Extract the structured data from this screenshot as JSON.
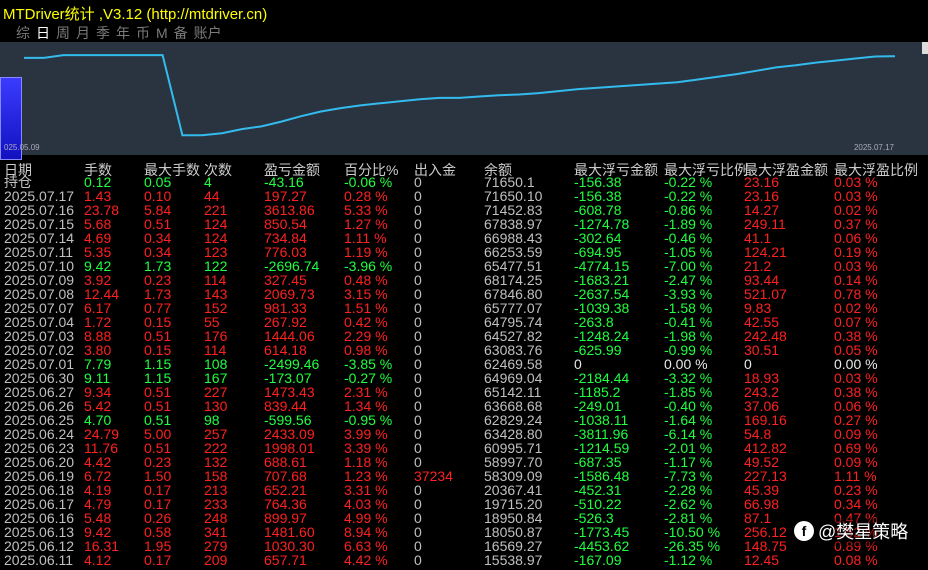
{
  "window": {
    "title": "MTDriver统计 ,V3.12 (http://mtdriver.cn)"
  },
  "tabs": [
    {
      "label": "综",
      "active": false
    },
    {
      "label": "日",
      "active": true
    },
    {
      "label": "周",
      "active": false
    },
    {
      "label": "月",
      "active": false
    },
    {
      "label": "季",
      "active": false
    },
    {
      "label": "年",
      "active": false
    },
    {
      "label": "币",
      "active": false
    },
    {
      "label": "M",
      "active": false
    },
    {
      "label": "备",
      "active": false
    },
    {
      "label": "账户",
      "active": false
    }
  ],
  "chart_data": {
    "type": "line",
    "x_start_label": "025.05.09",
    "x_end_label": "2025.07.17",
    "line_color": "#33bbee",
    "values": [
      71400,
      71400,
      71800,
      71800,
      71800,
      71800,
      71800,
      71800,
      60000,
      60000,
      60300,
      60900,
      61300,
      62000,
      62800,
      63500,
      64000,
      64400,
      64700,
      65000,
      65300,
      65500,
      65500,
      65700,
      65900,
      66000,
      66200,
      66500,
      66800,
      67000,
      67200,
      67400,
      67600,
      67800,
      68200,
      68600,
      69000,
      69500,
      70000,
      70300,
      70700,
      71000,
      71300,
      71600,
      71650
    ],
    "ylim": [
      59000,
      73000
    ]
  },
  "table": {
    "headers": [
      "日期",
      "手数",
      "最大手数",
      "次数",
      "盈亏金额",
      "百分比%",
      "出入金",
      "余额",
      "最大浮亏金额",
      "最大浮亏比例",
      "最大浮盈金额",
      "最大浮盈比例"
    ],
    "holding": {
      "label": "持仓",
      "lots": "0.12",
      "max_lots": "0.05",
      "count": "4",
      "pnl": "-43.16",
      "pct": "-0.06 %",
      "deposit": "0",
      "balance": "71650.1",
      "max_loss": "-156.38",
      "max_loss_pct": "-0.22 %",
      "max_profit": "23.16",
      "max_profit_pct": "0.03 %"
    },
    "rows": [
      {
        "date": "2025.07.17",
        "lots": "1.43",
        "max_lots": "0.10",
        "count": "44",
        "pnl": "197.27",
        "pct": "0.28 %",
        "deposit": "0",
        "balance": "71650.10",
        "max_loss": "-156.38",
        "max_loss_pct": "-0.22 %",
        "max_profit": "23.16",
        "max_profit_pct": "0.03 %",
        "sign": "pos"
      },
      {
        "date": "2025.07.16",
        "lots": "23.78",
        "max_lots": "5.84",
        "count": "221",
        "pnl": "3613.86",
        "pct": "5.33 %",
        "deposit": "0",
        "balance": "71452.83",
        "max_loss": "-608.78",
        "max_loss_pct": "-0.86 %",
        "max_profit": "14.27",
        "max_profit_pct": "0.02 %",
        "sign": "pos"
      },
      {
        "date": "2025.07.15",
        "lots": "5.68",
        "max_lots": "0.51",
        "count": "124",
        "pnl": "850.54",
        "pct": "1.27 %",
        "deposit": "0",
        "balance": "67838.97",
        "max_loss": "-1274.78",
        "max_loss_pct": "-1.89 %",
        "max_profit": "249.11",
        "max_profit_pct": "0.37 %",
        "sign": "pos"
      },
      {
        "date": "2025.07.14",
        "lots": "4.69",
        "max_lots": "0.34",
        "count": "124",
        "pnl": "734.84",
        "pct": "1.11 %",
        "deposit": "0",
        "balance": "66988.43",
        "max_loss": "-302.64",
        "max_loss_pct": "-0.46 %",
        "max_profit": "41.1",
        "max_profit_pct": "0.06 %",
        "sign": "pos"
      },
      {
        "date": "2025.07.11",
        "lots": "5.35",
        "max_lots": "0.34",
        "count": "123",
        "pnl": "776.03",
        "pct": "1.19 %",
        "deposit": "0",
        "balance": "66253.59",
        "max_loss": "-694.95",
        "max_loss_pct": "-1.05 %",
        "max_profit": "124.21",
        "max_profit_pct": "0.19 %",
        "sign": "pos"
      },
      {
        "date": "2025.07.10",
        "lots": "9.42",
        "max_lots": "1.73",
        "count": "122",
        "pnl": "-2696.74",
        "pct": "-3.96 %",
        "deposit": "0",
        "balance": "65477.51",
        "max_loss": "-4774.15",
        "max_loss_pct": "-7.00 %",
        "max_profit": "21.2",
        "max_profit_pct": "0.03 %",
        "sign": "neg"
      },
      {
        "date": "2025.07.09",
        "lots": "3.92",
        "max_lots": "0.23",
        "count": "114",
        "pnl": "327.45",
        "pct": "0.48 %",
        "deposit": "0",
        "balance": "68174.25",
        "max_loss": "-1683.21",
        "max_loss_pct": "-2.47 %",
        "max_profit": "93.44",
        "max_profit_pct": "0.14 %",
        "sign": "pos"
      },
      {
        "date": "2025.07.08",
        "lots": "12.44",
        "max_lots": "1.73",
        "count": "143",
        "pnl": "2069.73",
        "pct": "3.15 %",
        "deposit": "0",
        "balance": "67846.80",
        "max_loss": "-2637.54",
        "max_loss_pct": "-3.93 %",
        "max_profit": "521.07",
        "max_profit_pct": "0.78 %",
        "sign": "pos"
      },
      {
        "date": "2025.07.07",
        "lots": "6.17",
        "max_lots": "0.77",
        "count": "152",
        "pnl": "981.33",
        "pct": "1.51 %",
        "deposit": "0",
        "balance": "65777.07",
        "max_loss": "-1039.38",
        "max_loss_pct": "-1.58 %",
        "max_profit": "9.83",
        "max_profit_pct": "0.02 %",
        "sign": "pos"
      },
      {
        "date": "2025.07.04",
        "lots": "1.72",
        "max_lots": "0.15",
        "count": "55",
        "pnl": "267.92",
        "pct": "0.42 %",
        "deposit": "0",
        "balance": "64795.74",
        "max_loss": "-263.8",
        "max_loss_pct": "-0.41 %",
        "max_profit": "42.55",
        "max_profit_pct": "0.07 %",
        "sign": "pos"
      },
      {
        "date": "2025.07.03",
        "lots": "8.88",
        "max_lots": "0.51",
        "count": "176",
        "pnl": "1444.06",
        "pct": "2.29 %",
        "deposit": "0",
        "balance": "64527.82",
        "max_loss": "-1248.24",
        "max_loss_pct": "-1.98 %",
        "max_profit": "242.48",
        "max_profit_pct": "0.38 %",
        "sign": "pos"
      },
      {
        "date": "2025.07.02",
        "lots": "3.80",
        "max_lots": "0.15",
        "count": "114",
        "pnl": "614.18",
        "pct": "0.98 %",
        "deposit": "0",
        "balance": "63083.76",
        "max_loss": "-625.99",
        "max_loss_pct": "-0.99 %",
        "max_profit": "30.51",
        "max_profit_pct": "0.05 %",
        "sign": "pos"
      },
      {
        "date": "2025.07.01",
        "lots": "7.79",
        "max_lots": "1.15",
        "count": "108",
        "pnl": "-2499.46",
        "pct": "-3.85 %",
        "deposit": "0",
        "balance": "62469.58",
        "max_loss": "0",
        "max_loss_pct": "0.00 %",
        "max_profit": "0",
        "max_profit_pct": "0.00 %",
        "sign": "neg",
        "zero_tail": true
      },
      {
        "date": "2025.06.30",
        "lots": "9.11",
        "max_lots": "1.15",
        "count": "167",
        "pnl": "-173.07",
        "pct": "-0.27 %",
        "deposit": "0",
        "balance": "64969.04",
        "max_loss": "-2184.44",
        "max_loss_pct": "-3.32 %",
        "max_profit": "18.93",
        "max_profit_pct": "0.03 %",
        "sign": "neg"
      },
      {
        "date": "2025.06.27",
        "lots": "9.34",
        "max_lots": "0.51",
        "count": "227",
        "pnl": "1473.43",
        "pct": "2.31 %",
        "deposit": "0",
        "balance": "65142.11",
        "max_loss": "-1185.2",
        "max_loss_pct": "-1.85 %",
        "max_profit": "243.2",
        "max_profit_pct": "0.38 %",
        "sign": "pos"
      },
      {
        "date": "2025.06.26",
        "lots": "5.42",
        "max_lots": "0.51",
        "count": "130",
        "pnl": "839.44",
        "pct": "1.34 %",
        "deposit": "0",
        "balance": "63668.68",
        "max_loss": "-249.01",
        "max_loss_pct": "-0.40 %",
        "max_profit": "37.06",
        "max_profit_pct": "0.06 %",
        "sign": "pos"
      },
      {
        "date": "2025.06.25",
        "lots": "4.70",
        "max_lots": "0.51",
        "count": "98",
        "pnl": "-599.56",
        "pct": "-0.95 %",
        "deposit": "0",
        "balance": "62829.24",
        "max_loss": "-1038.11",
        "max_loss_pct": "-1.64 %",
        "max_profit": "169.16",
        "max_profit_pct": "0.27 %",
        "sign": "neg"
      },
      {
        "date": "2025.06.24",
        "lots": "24.79",
        "max_lots": "5.00",
        "count": "257",
        "pnl": "2433.09",
        "pct": "3.99 %",
        "deposit": "0",
        "balance": "63428.80",
        "max_loss": "-3811.96",
        "max_loss_pct": "-6.14 %",
        "max_profit": "54.8",
        "max_profit_pct": "0.09 %",
        "sign": "pos"
      },
      {
        "date": "2025.06.23",
        "lots": "11.76",
        "max_lots": "0.51",
        "count": "222",
        "pnl": "1998.01",
        "pct": "3.39 %",
        "deposit": "0",
        "balance": "60995.71",
        "max_loss": "-1214.59",
        "max_loss_pct": "-2.01 %",
        "max_profit": "412.82",
        "max_profit_pct": "0.69 %",
        "sign": "pos"
      },
      {
        "date": "2025.06.20",
        "lots": "4.42",
        "max_lots": "0.23",
        "count": "132",
        "pnl": "688.61",
        "pct": "1.18 %",
        "deposit": "0",
        "balance": "58997.70",
        "max_loss": "-687.35",
        "max_loss_pct": "-1.17 %",
        "max_profit": "49.52",
        "max_profit_pct": "0.09 %",
        "sign": "pos"
      },
      {
        "date": "2025.06.19",
        "lots": "6.72",
        "max_lots": "1.50",
        "count": "158",
        "pnl": "707.68",
        "pct": "1.23 %",
        "deposit": "37234",
        "balance": "58309.09",
        "max_loss": "-1586.48",
        "max_loss_pct": "-7.73 %",
        "max_profit": "227.13",
        "max_profit_pct": "1.11 %",
        "sign": "pos",
        "deposit_red": true
      },
      {
        "date": "2025.06.18",
        "lots": "4.19",
        "max_lots": "0.17",
        "count": "213",
        "pnl": "652.21",
        "pct": "3.31 %",
        "deposit": "0",
        "balance": "20367.41",
        "max_loss": "-452.31",
        "max_loss_pct": "-2.28 %",
        "max_profit": "45.39",
        "max_profit_pct": "0.23 %",
        "sign": "pos"
      },
      {
        "date": "2025.06.17",
        "lots": "4.79",
        "max_lots": "0.17",
        "count": "233",
        "pnl": "764.36",
        "pct": "4.03 %",
        "deposit": "0",
        "balance": "19715.20",
        "max_loss": "-510.22",
        "max_loss_pct": "-2.62 %",
        "max_profit": "66.98",
        "max_profit_pct": "0.34 %",
        "sign": "pos"
      },
      {
        "date": "2025.06.16",
        "lots": "5.48",
        "max_lots": "0.26",
        "count": "248",
        "pnl": "899.97",
        "pct": "4.99 %",
        "deposit": "0",
        "balance": "18950.84",
        "max_loss": "-526.3",
        "max_loss_pct": "-2.81 %",
        "max_profit": "87.1",
        "max_profit_pct": "0.47 %",
        "sign": "pos"
      },
      {
        "date": "2025.06.13",
        "lots": "9.42",
        "max_lots": "0.58",
        "count": "341",
        "pnl": "1481.60",
        "pct": "8.94 %",
        "deposit": "0",
        "balance": "18050.87",
        "max_loss": "-1773.45",
        "max_loss_pct": "-10.50 %",
        "max_profit": "256.12",
        "max_profit_pct": "1.52 %",
        "sign": "pos"
      },
      {
        "date": "2025.06.12",
        "lots": "16.31",
        "max_lots": "1.95",
        "count": "279",
        "pnl": "1030.30",
        "pct": "6.63 %",
        "deposit": "0",
        "balance": "16569.27",
        "max_loss": "-4453.62",
        "max_loss_pct": "-26.35 %",
        "max_profit": "148.75",
        "max_profit_pct": "0.89 %",
        "sign": "pos"
      },
      {
        "date": "2025.06.11",
        "lots": "4.12",
        "max_lots": "0.17",
        "count": "209",
        "pnl": "657.71",
        "pct": "4.42 %",
        "deposit": "0",
        "balance": "15538.97",
        "max_loss": "-167.09",
        "max_loss_pct": "-1.12 %",
        "max_profit": "12.45",
        "max_profit_pct": "0.08 %",
        "sign": "pos"
      }
    ]
  },
  "watermark": {
    "logo_letter": "f",
    "text": "@樊星策略"
  },
  "colors": {
    "positive": "#ff2020",
    "negative": "#20ff40",
    "line": "#33bbee"
  }
}
